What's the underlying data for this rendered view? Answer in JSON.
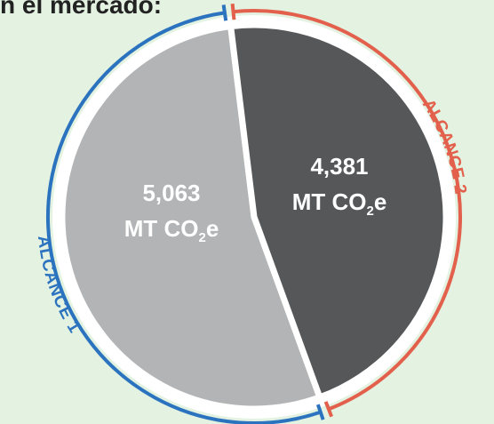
{
  "title": "n el mercado:",
  "chart_data": {
    "type": "pie",
    "series": [
      {
        "name": "ALCANCE 1",
        "value": 5063,
        "value_label": "5,063",
        "unit_main": "MT CO",
        "unit_sub": "2",
        "unit_tail": "e",
        "color": "#b2b4b5",
        "arc_color": "#2c73bf"
      },
      {
        "name": "ALCANCE 2",
        "value": 4381,
        "value_label": "4,381",
        "unit_main": "MT CO",
        "unit_sub": "2",
        "unit_tail": "e",
        "color": "#555759",
        "arc_color": "#e2604c"
      }
    ]
  }
}
